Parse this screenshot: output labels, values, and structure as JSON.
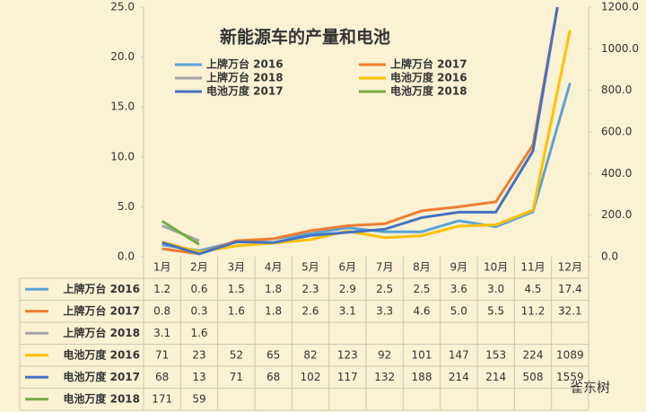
{
  "chart_data": {
    "type": "line",
    "title": "新能源车的产量和电池",
    "categories": [
      "1月",
      "2月",
      "3月",
      "4月",
      "5月",
      "6月",
      "7月",
      "8月",
      "9月",
      "10月",
      "11月",
      "12月"
    ],
    "ylim": [
      0,
      25
    ],
    "yticks": [
      {
        "value": 0,
        "label": "0.0"
      },
      {
        "value": 5,
        "label": "5.0"
      },
      {
        "value": 10,
        "label": "10.0"
      },
      {
        "value": 15,
        "label": "15.0"
      },
      {
        "value": 20,
        "label": "20.0"
      },
      {
        "value": 25,
        "label": "25.0"
      }
    ],
    "y2lim": [
      0,
      1200
    ],
    "y2ticks": [
      {
        "value": 0,
        "label": "0.0"
      },
      {
        "value": 200,
        "label": "200.0"
      },
      {
        "value": 400,
        "label": "400.0"
      },
      {
        "value": 600,
        "label": "600.0"
      },
      {
        "value": 800,
        "label": "800.0"
      },
      {
        "value": 1000,
        "label": "1000.0"
      },
      {
        "value": 1200,
        "label": "1200.0"
      }
    ],
    "series": [
      {
        "name": "上牌万台 2016",
        "color": "#5ba3d6",
        "values": [
          1.2,
          0.6,
          1.5,
          1.8,
          2.3,
          2.9,
          2.5,
          2.5,
          3.6,
          3.0,
          4.5,
          17.4
        ],
        "value_labels": [
          "1.2",
          "0.6",
          "1.5",
          "1.8",
          "2.3",
          "2.9",
          "2.5",
          "2.5",
          "3.6",
          "3.0",
          "4.5",
          "17.4"
        ]
      },
      {
        "name": "上牌万台 2017",
        "color": "#ed7d31",
        "values": [
          0.8,
          0.3,
          1.6,
          1.8,
          2.6,
          3.1,
          3.3,
          4.6,
          5.0,
          5.5,
          11.2,
          32.1
        ],
        "value_labels": [
          "0.8",
          "0.3",
          "1.6",
          "1.8",
          "2.6",
          "3.1",
          "3.3",
          "4.6",
          "5.0",
          "5.5",
          "11.2",
          "32.1"
        ]
      },
      {
        "name": "上牌万台 2018",
        "color": "#a5a5a5",
        "values": [
          3.1,
          1.6,
          null,
          null,
          null,
          null,
          null,
          null,
          null,
          null,
          null,
          null
        ]
      },
      {
        "name": "电池万度 2016",
        "color": "#ffc000",
        "axis": "y2",
        "values": [
          71,
          23,
          52,
          65,
          82,
          123,
          92,
          101,
          147,
          153,
          224,
          1089
        ]
      },
      {
        "name": "电池万度 2017",
        "color": "#4472c4",
        "axis": "y2",
        "values": [
          68,
          13,
          71,
          68,
          102,
          117,
          132,
          188,
          214,
          214,
          508,
          1559
        ]
      },
      {
        "name": "电池万度 2018",
        "color": "#70ad47",
        "axis": "y2",
        "values": [
          171,
          59,
          null,
          null,
          null,
          null,
          null,
          null,
          null,
          null,
          null,
          null
        ]
      }
    ],
    "watermark": "雀东树"
  }
}
